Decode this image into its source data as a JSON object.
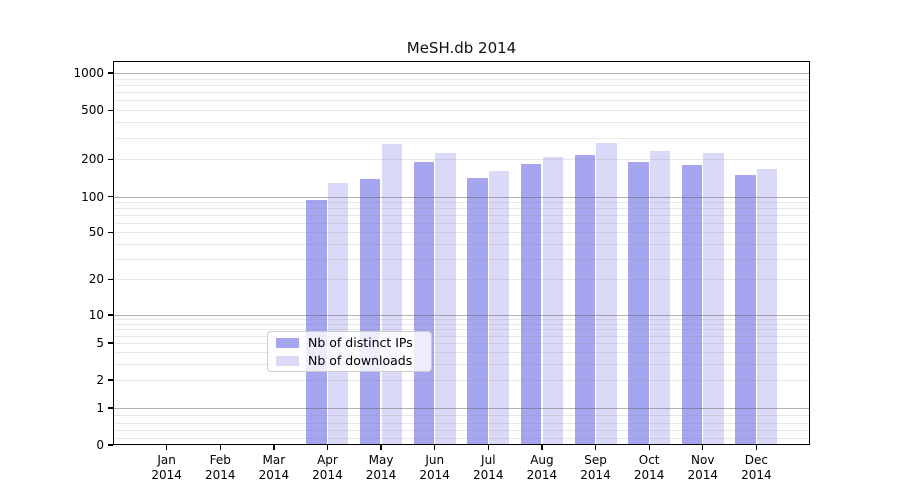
{
  "chart_data": {
    "type": "bar",
    "title": "MeSH.db 2014",
    "yscale": "symlog",
    "grid": true,
    "legend_position": "lower center",
    "ylim": [
      0,
      1250
    ],
    "y_ticks": [
      0,
      1,
      2,
      5,
      10,
      20,
      50,
      100,
      200,
      500,
      1000
    ],
    "categories": [
      "Jan",
      "Feb",
      "Mar",
      "Apr",
      "May",
      "Jun",
      "Jul",
      "Aug",
      "Sep",
      "Oct",
      "Nov",
      "Dec"
    ],
    "year_label": "2014",
    "series": [
      {
        "name": "Nb of distinct IPs",
        "color": "#a5a5f0",
        "values": [
          0,
          0,
          0,
          93,
          140,
          192,
          141,
          185,
          216,
          192,
          182,
          150
        ]
      },
      {
        "name": "Nb of downloads",
        "color": "#dadaf8",
        "values": [
          0,
          0,
          0,
          128,
          266,
          226,
          161,
          210,
          272,
          236,
          224,
          166
        ]
      }
    ]
  }
}
